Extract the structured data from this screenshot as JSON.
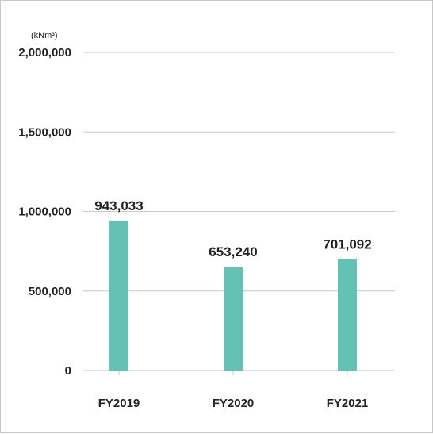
{
  "chart_data": {
    "type": "bar",
    "unit": "(kNm³)",
    "categories": [
      "FY2019",
      "FY2020",
      "FY2021"
    ],
    "values": [
      943033,
      653240,
      701092
    ],
    "data_labels": [
      "943,033",
      "653,240",
      "701,092"
    ],
    "yticks": [
      0,
      500000,
      1000000,
      1500000,
      2000000
    ],
    "ytick_labels": [
      "0",
      "500,000",
      "1,000,000",
      "1,500,000",
      "2,000,000"
    ],
    "ylim": [
      0,
      2000000
    ],
    "grid": true,
    "bar_color": "#63c2b3",
    "grid_color": "#c9c9c9",
    "title": "",
    "xlabel": "",
    "ylabel": ""
  }
}
